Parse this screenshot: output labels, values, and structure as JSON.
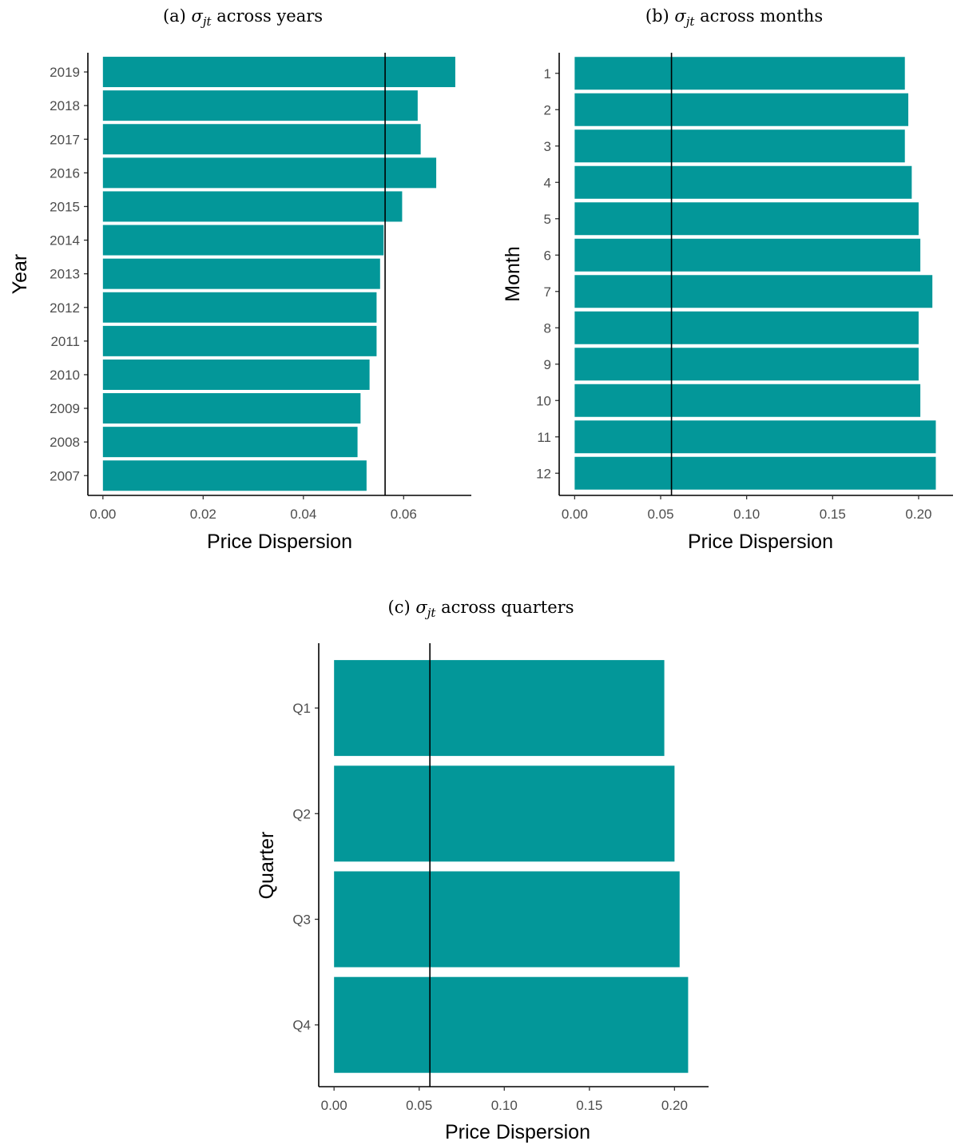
{
  "figure": {
    "panels": [
      "a",
      "b",
      "c"
    ]
  },
  "chart_data": [
    {
      "id": "a",
      "type": "bar",
      "orientation": "horizontal",
      "caption_prefix": "(a) ",
      "caption_symbol": "σ",
      "caption_subscript": "jt",
      "caption_suffix": " across years",
      "ylabel": "Year",
      "xlabel": "Price Dispersion",
      "categories": [
        "2019",
        "2018",
        "2017",
        "2016",
        "2015",
        "2014",
        "2013",
        "2012",
        "2011",
        "2010",
        "2009",
        "2008",
        "2007"
      ],
      "values": [
        0.0703,
        0.0628,
        0.0634,
        0.0665,
        0.0597,
        0.056,
        0.0553,
        0.0546,
        0.0546,
        0.0532,
        0.0514,
        0.0508,
        0.0526
      ],
      "xlim": [
        -0.003,
        0.0735
      ],
      "xticks": [
        0,
        0.02,
        0.04,
        0.06
      ],
      "xtick_labels": [
        "0.00",
        "0.02",
        "0.04",
        "0.06"
      ],
      "reference_line": 0.0563,
      "bar_color": "#039799",
      "grid": false
    },
    {
      "id": "b",
      "type": "bar",
      "orientation": "horizontal",
      "caption_prefix": "(b) ",
      "caption_symbol": "σ",
      "caption_subscript": "jt",
      "caption_suffix": " across months",
      "ylabel": "Month",
      "xlabel": "Price Dispersion",
      "categories": [
        "1",
        "2",
        "3",
        "4",
        "5",
        "6",
        "7",
        "8",
        "9",
        "10",
        "11",
        "12"
      ],
      "values": [
        0.192,
        0.194,
        0.192,
        0.196,
        0.2,
        0.201,
        0.208,
        0.2,
        0.2,
        0.201,
        0.21,
        0.21
      ],
      "xlim": [
        -0.009,
        0.22
      ],
      "xticks": [
        0,
        0.05,
        0.1,
        0.15,
        0.2
      ],
      "xtick_labels": [
        "0.00",
        "0.05",
        "0.10",
        "0.15",
        "0.20"
      ],
      "reference_line": 0.0563,
      "bar_color": "#039799",
      "grid": false
    },
    {
      "id": "c",
      "type": "bar",
      "orientation": "horizontal",
      "caption_prefix": "(c) ",
      "caption_symbol": "σ",
      "caption_subscript": "jt",
      "caption_suffix": " across quarters",
      "ylabel": "Quarter",
      "xlabel": "Price Dispersion",
      "categories": [
        "Q1",
        "Q2",
        "Q3",
        "Q4"
      ],
      "values": [
        0.194,
        0.2,
        0.203,
        0.208
      ],
      "xlim": [
        -0.009,
        0.22
      ],
      "xticks": [
        0,
        0.05,
        0.1,
        0.15,
        0.2
      ],
      "xtick_labels": [
        "0.00",
        "0.05",
        "0.10",
        "0.15",
        "0.20"
      ],
      "reference_line": 0.0563,
      "bar_color": "#039799",
      "grid": false
    }
  ]
}
